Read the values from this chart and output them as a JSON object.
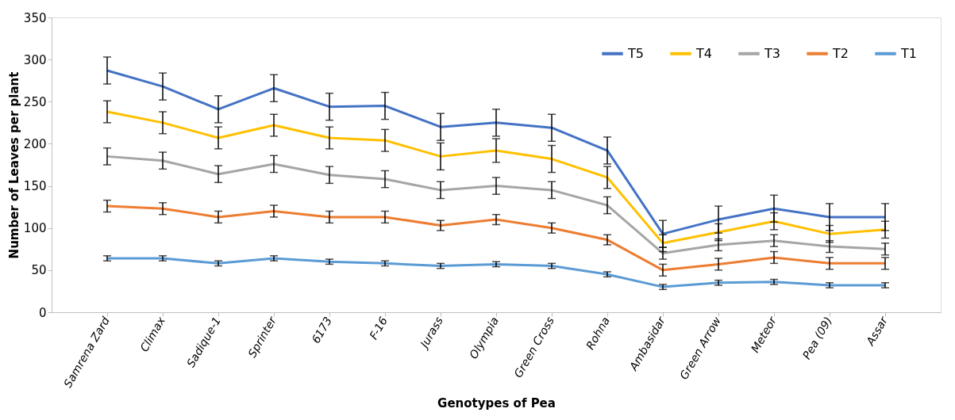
{
  "chart_data": {
    "type": "line",
    "xlabel": "Genotypes  of Pea",
    "ylabel": "Number of Leaves per plant",
    "categories": [
      "Samrena Zard",
      "Climax",
      "Sadique-1",
      "Sprinter",
      "6173",
      "F-16",
      "Jurass",
      "Olympia",
      "Green Cross",
      "Rohna",
      "Ambasidar",
      "Green Arrow",
      "Meteor",
      "Pea (09)",
      "Assar"
    ],
    "series": [
      {
        "name": "T5",
        "color": "#4472c4",
        "values": [
          287,
          268,
          241,
          266,
          244,
          245,
          220,
          225,
          219,
          192,
          93,
          110,
          123,
          113,
          113
        ],
        "errors": [
          16,
          16,
          16,
          16,
          16,
          16,
          16,
          16,
          16,
          16,
          16,
          16,
          16,
          16,
          16
        ]
      },
      {
        "name": "T4",
        "color": "#ffc000",
        "values": [
          238,
          225,
          207,
          222,
          207,
          204,
          185,
          192,
          182,
          160,
          82,
          95,
          108,
          93,
          98
        ],
        "errors": [
          13,
          13,
          13,
          13,
          13,
          13,
          16,
          14,
          16,
          13,
          10,
          10,
          10,
          10,
          10
        ]
      },
      {
        "name": "T3",
        "color": "#a5a5a5",
        "values": [
          185,
          180,
          164,
          176,
          163,
          158,
          145,
          150,
          145,
          127,
          70,
          80,
          85,
          78,
          75
        ],
        "errors": [
          10,
          10,
          10,
          10,
          10,
          10,
          10,
          10,
          10,
          10,
          7,
          7,
          7,
          7,
          7
        ]
      },
      {
        "name": "T2",
        "color": "#ed7d31",
        "values": [
          126,
          123,
          113,
          120,
          113,
          113,
          103,
          110,
          100,
          86,
          50,
          57,
          65,
          58,
          58
        ],
        "errors": [
          7,
          7,
          7,
          7,
          7,
          7,
          6,
          6,
          6,
          6,
          7,
          7,
          7,
          7,
          7
        ]
      },
      {
        "name": "T1",
        "color": "#5b9bd5",
        "values": [
          64,
          64,
          58,
          64,
          60,
          58,
          55,
          57,
          55,
          45,
          30,
          35,
          36,
          32,
          32
        ],
        "errors": [
          3,
          3,
          3,
          3,
          3,
          3,
          3,
          3,
          3,
          3,
          3,
          3,
          3,
          3,
          3
        ]
      }
    ],
    "ylim": [
      0,
      350
    ],
    "yticks": [
      0,
      50,
      100,
      150,
      200,
      250,
      300,
      350
    ],
    "grid": false,
    "legend": "top right",
    "marker": "none",
    "line_style": "solid"
  }
}
